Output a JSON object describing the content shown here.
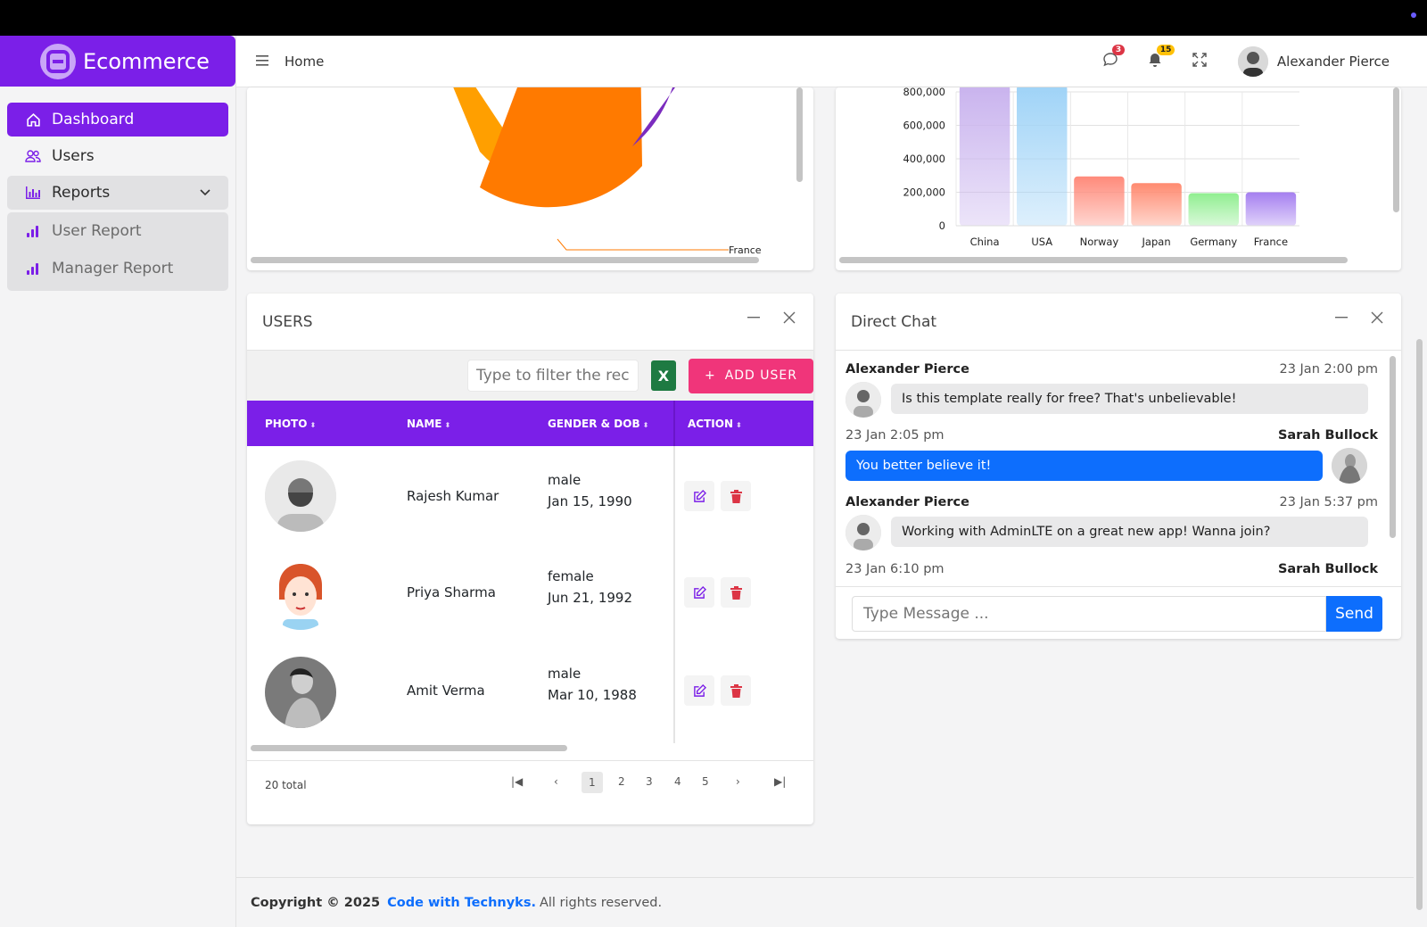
{
  "brand": {
    "name": "Ecommerce",
    "color": "#7b1fe8"
  },
  "sidebar": {
    "items": [
      {
        "label": "Dashboard",
        "icon": "home-icon",
        "active": true
      },
      {
        "label": "Users",
        "icon": "users-icon"
      },
      {
        "label": "Reports",
        "icon": "bar-chart-icon",
        "expanded": true
      },
      {
        "label": "User Report",
        "icon": "signal-icon"
      },
      {
        "label": "Manager Report",
        "icon": "signal-icon"
      }
    ]
  },
  "header": {
    "home_label": "Home",
    "messages_badge": "3",
    "notifications_badge": "15",
    "user_name": "Alexander Pierce"
  },
  "pie_card": {
    "label_france": "France",
    "colors": [
      "#ff9f00",
      "#ff7a00",
      "#7b2cbf"
    ]
  },
  "chart_data": {
    "type": "bar",
    "categories": [
      "China",
      "USA",
      "Norway",
      "Japan",
      "Germany",
      "France"
    ],
    "values": [
      850000,
      850000,
      295000,
      255000,
      195000,
      200000
    ],
    "yticks": [
      "800,000",
      "600,000",
      "400,000",
      "200,000",
      "0"
    ],
    "ylim": [
      0,
      800000
    ],
    "colors": [
      "#c9b3ee",
      "#9fd3f7",
      "#ff8a7a",
      "#ff8a70",
      "#90ee90",
      "#a57ff0"
    ]
  },
  "users": {
    "title": "USERS",
    "filter_placeholder": "Type to filter the records",
    "add_label": "ADD USER",
    "columns": [
      "PHOTO",
      "NAME",
      "GENDER & DOB",
      "ACTION"
    ],
    "rows": [
      {
        "name": "Rajesh Kumar",
        "gender": "male",
        "dob": "Jan 15, 1990"
      },
      {
        "name": "Priya Sharma",
        "gender": "female",
        "dob": "Jun 21, 1992"
      },
      {
        "name": "Amit Verma",
        "gender": "male",
        "dob": "Mar 10, 1988"
      }
    ],
    "total": "20 total",
    "pages": [
      "1",
      "2",
      "3",
      "4",
      "5"
    ]
  },
  "chat": {
    "title": "Direct Chat",
    "messages": [
      {
        "name": "Alexander Pierce",
        "time": "23 Jan 2:00 pm",
        "text": "Is this template really for free? That's unbelievable!",
        "side": "left"
      },
      {
        "name": "Sarah Bullock",
        "time": "23 Jan 2:05 pm",
        "text": "You better believe it!",
        "side": "right"
      },
      {
        "name": "Alexander Pierce",
        "time": "23 Jan 5:37 pm",
        "text": "Working with AdminLTE on a great new app! Wanna join?",
        "side": "left"
      },
      {
        "name": "Sarah Bullock",
        "time": "23 Jan 6:10 pm",
        "text": "",
        "side": "right"
      }
    ],
    "input_placeholder": "Type Message ...",
    "send_label": "Send"
  },
  "footer": {
    "copyright": "Copyright © 2025",
    "link": "Code with Technyks.",
    "rights": "All rights reserved."
  }
}
